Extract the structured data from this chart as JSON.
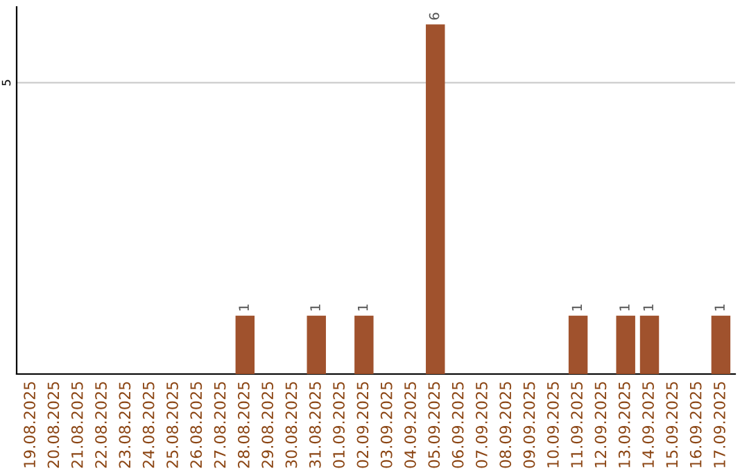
{
  "chart_data": {
    "type": "bar",
    "categories": [
      "19.08.2025",
      "20.08.2025",
      "21.08.2025",
      "22.08.2025",
      "23.08.2025",
      "24.08.2025",
      "25.08.2025",
      "26.08.2025",
      "27.08.2025",
      "28.08.2025",
      "29.08.2025",
      "30.08.2025",
      "31.08.2025",
      "01.09.2025",
      "02.09.2025",
      "03.09.2025",
      "04.09.2025",
      "05.09.2025",
      "06.09.2025",
      "07.09.2025",
      "08.09.2025",
      "09.09.2025",
      "10.09.2025",
      "11.09.2025",
      "12.09.2025",
      "13.09.2025",
      "14.09.2025",
      "15.09.2025",
      "16.09.2025",
      "17.09.2025"
    ],
    "values": [
      0,
      0,
      0,
      0,
      0,
      0,
      0,
      0,
      0,
      1,
      0,
      0,
      1,
      0,
      1,
      0,
      0,
      6,
      0,
      0,
      0,
      0,
      0,
      1,
      0,
      1,
      1,
      0,
      0,
      1
    ],
    "value_labels": [
      null,
      null,
      null,
      null,
      null,
      null,
      null,
      null,
      null,
      "1",
      null,
      null,
      "1",
      null,
      "1",
      null,
      null,
      "6",
      null,
      null,
      null,
      null,
      null,
      "1",
      null,
      "1",
      "1",
      null,
      null,
      "1"
    ],
    "color": "#a0522d",
    "ylim": [
      0,
      6.3
    ],
    "yticks": [
      5
    ],
    "grid": "y",
    "legend": false
  }
}
